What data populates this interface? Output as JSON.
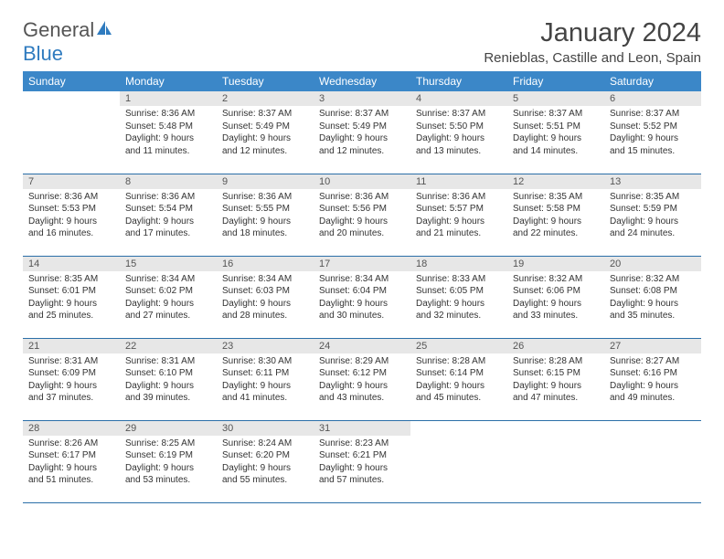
{
  "logo": {
    "word1": "General",
    "word2": "Blue"
  },
  "title": "January 2024",
  "location": "Renieblas, Castille and Leon, Spain",
  "colors": {
    "header_bg": "#3b87c8",
    "header_text": "#ffffff",
    "daynum_bg": "#e7e7e7",
    "rule": "#2b6fa8",
    "logo_gray": "#555555",
    "logo_blue": "#2f7bbf"
  },
  "weekdays": [
    "Sunday",
    "Monday",
    "Tuesday",
    "Wednesday",
    "Thursday",
    "Friday",
    "Saturday"
  ],
  "cells": [
    [
      {
        "blank": true
      },
      {
        "n": "1",
        "sr": "8:36 AM",
        "ss": "5:48 PM",
        "dl": "9 hours and 11 minutes."
      },
      {
        "n": "2",
        "sr": "8:37 AM",
        "ss": "5:49 PM",
        "dl": "9 hours and 12 minutes."
      },
      {
        "n": "3",
        "sr": "8:37 AM",
        "ss": "5:49 PM",
        "dl": "9 hours and 12 minutes."
      },
      {
        "n": "4",
        "sr": "8:37 AM",
        "ss": "5:50 PM",
        "dl": "9 hours and 13 minutes."
      },
      {
        "n": "5",
        "sr": "8:37 AM",
        "ss": "5:51 PM",
        "dl": "9 hours and 14 minutes."
      },
      {
        "n": "6",
        "sr": "8:37 AM",
        "ss": "5:52 PM",
        "dl": "9 hours and 15 minutes."
      }
    ],
    [
      {
        "n": "7",
        "sr": "8:36 AM",
        "ss": "5:53 PM",
        "dl": "9 hours and 16 minutes."
      },
      {
        "n": "8",
        "sr": "8:36 AM",
        "ss": "5:54 PM",
        "dl": "9 hours and 17 minutes."
      },
      {
        "n": "9",
        "sr": "8:36 AM",
        "ss": "5:55 PM",
        "dl": "9 hours and 18 minutes."
      },
      {
        "n": "10",
        "sr": "8:36 AM",
        "ss": "5:56 PM",
        "dl": "9 hours and 20 minutes."
      },
      {
        "n": "11",
        "sr": "8:36 AM",
        "ss": "5:57 PM",
        "dl": "9 hours and 21 minutes."
      },
      {
        "n": "12",
        "sr": "8:35 AM",
        "ss": "5:58 PM",
        "dl": "9 hours and 22 minutes."
      },
      {
        "n": "13",
        "sr": "8:35 AM",
        "ss": "5:59 PM",
        "dl": "9 hours and 24 minutes."
      }
    ],
    [
      {
        "n": "14",
        "sr": "8:35 AM",
        "ss": "6:01 PM",
        "dl": "9 hours and 25 minutes."
      },
      {
        "n": "15",
        "sr": "8:34 AM",
        "ss": "6:02 PM",
        "dl": "9 hours and 27 minutes."
      },
      {
        "n": "16",
        "sr": "8:34 AM",
        "ss": "6:03 PM",
        "dl": "9 hours and 28 minutes."
      },
      {
        "n": "17",
        "sr": "8:34 AM",
        "ss": "6:04 PM",
        "dl": "9 hours and 30 minutes."
      },
      {
        "n": "18",
        "sr": "8:33 AM",
        "ss": "6:05 PM",
        "dl": "9 hours and 32 minutes."
      },
      {
        "n": "19",
        "sr": "8:32 AM",
        "ss": "6:06 PM",
        "dl": "9 hours and 33 minutes."
      },
      {
        "n": "20",
        "sr": "8:32 AM",
        "ss": "6:08 PM",
        "dl": "9 hours and 35 minutes."
      }
    ],
    [
      {
        "n": "21",
        "sr": "8:31 AM",
        "ss": "6:09 PM",
        "dl": "9 hours and 37 minutes."
      },
      {
        "n": "22",
        "sr": "8:31 AM",
        "ss": "6:10 PM",
        "dl": "9 hours and 39 minutes."
      },
      {
        "n": "23",
        "sr": "8:30 AM",
        "ss": "6:11 PM",
        "dl": "9 hours and 41 minutes."
      },
      {
        "n": "24",
        "sr": "8:29 AM",
        "ss": "6:12 PM",
        "dl": "9 hours and 43 minutes."
      },
      {
        "n": "25",
        "sr": "8:28 AM",
        "ss": "6:14 PM",
        "dl": "9 hours and 45 minutes."
      },
      {
        "n": "26",
        "sr": "8:28 AM",
        "ss": "6:15 PM",
        "dl": "9 hours and 47 minutes."
      },
      {
        "n": "27",
        "sr": "8:27 AM",
        "ss": "6:16 PM",
        "dl": "9 hours and 49 minutes."
      }
    ],
    [
      {
        "n": "28",
        "sr": "8:26 AM",
        "ss": "6:17 PM",
        "dl": "9 hours and 51 minutes."
      },
      {
        "n": "29",
        "sr": "8:25 AM",
        "ss": "6:19 PM",
        "dl": "9 hours and 53 minutes."
      },
      {
        "n": "30",
        "sr": "8:24 AM",
        "ss": "6:20 PM",
        "dl": "9 hours and 55 minutes."
      },
      {
        "n": "31",
        "sr": "8:23 AM",
        "ss": "6:21 PM",
        "dl": "9 hours and 57 minutes."
      },
      {
        "blank": true
      },
      {
        "blank": true
      },
      {
        "blank": true
      }
    ]
  ],
  "labels": {
    "sunrise": "Sunrise: ",
    "sunset": "Sunset: ",
    "daylight": "Daylight: "
  }
}
